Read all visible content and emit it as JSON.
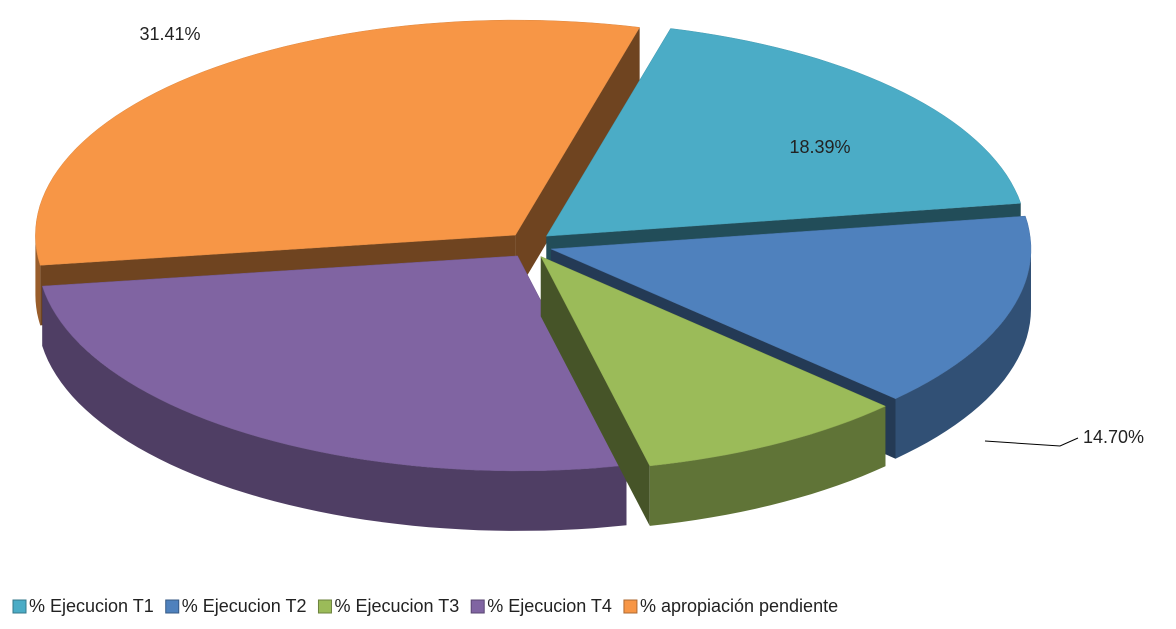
{
  "chart_data": {
    "type": "pie",
    "categories": [
      "% Ejecucion T1",
      "% Ejecucion T2",
      "% Ejecucion T3",
      "% Ejecucion T4",
      "% apropiación pendiente"
    ],
    "values": [
      18.39,
      14.7,
      9.1,
      26.4,
      31.41
    ],
    "value_labels": [
      "18.39%",
      "14.70%",
      null,
      null,
      "31.41%"
    ],
    "colors": [
      "#4bacc6",
      "#4f81bd",
      "#9bbb59",
      "#8064a2",
      "#f79646"
    ],
    "legend": "bottom"
  }
}
